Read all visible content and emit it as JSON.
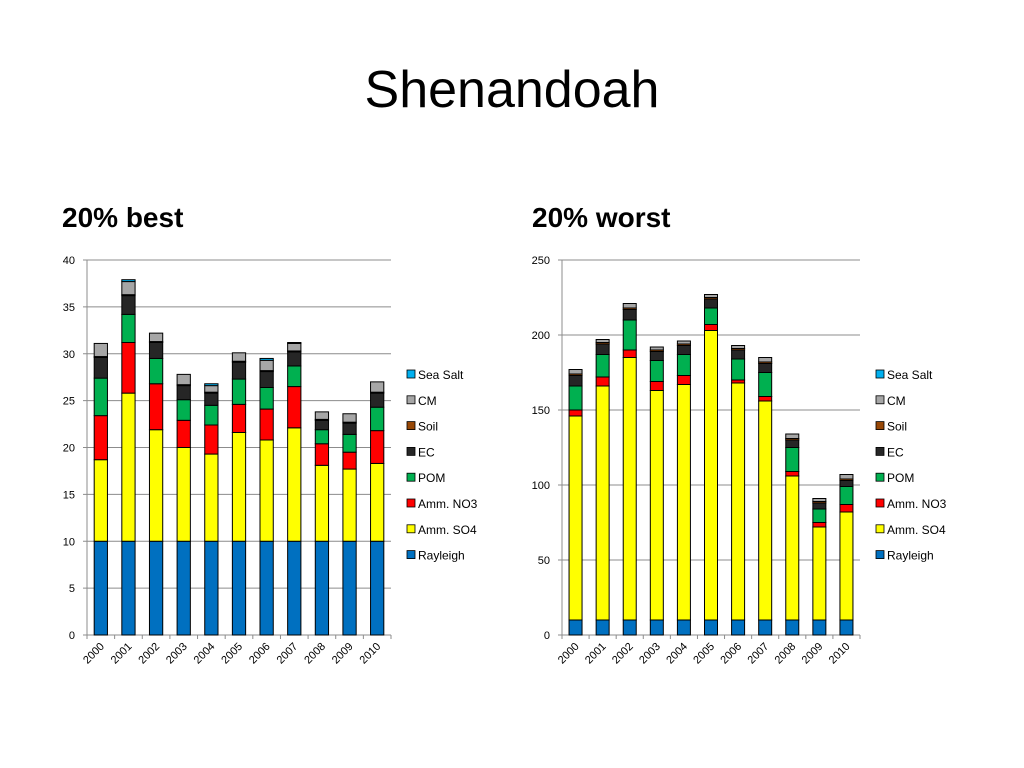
{
  "slide": {
    "title": "Shenandoah"
  },
  "chart_data": [
    {
      "type": "bar",
      "stacked": true,
      "title": "20% best",
      "xlabel": "",
      "ylabel": "",
      "ylim": [
        0,
        40
      ],
      "yticks": [
        0,
        5,
        10,
        15,
        20,
        25,
        30,
        35,
        40
      ],
      "grid": true,
      "legend": "right",
      "categories": [
        "2000",
        "2001",
        "2002",
        "2003",
        "2004",
        "2005",
        "2006",
        "2007",
        "2008",
        "2009",
        "2010"
      ],
      "series": [
        {
          "name": "Rayleigh",
          "color": "#0070C0",
          "values": [
            10,
            10,
            10,
            10,
            10,
            10,
            10,
            10,
            10,
            10,
            10
          ]
        },
        {
          "name": "Amm. SO4",
          "color": "#FFFF00",
          "values": [
            8.7,
            15.8,
            11.9,
            10.0,
            9.3,
            11.6,
            10.8,
            12.1,
            8.1,
            7.7,
            8.3
          ]
        },
        {
          "name": "Amm. NO3",
          "color": "#FF0000",
          "values": [
            4.7,
            5.4,
            4.9,
            2.9,
            3.1,
            3.0,
            3.3,
            4.4,
            2.3,
            1.8,
            3.5
          ]
        },
        {
          "name": "POM",
          "color": "#00B050",
          "values": [
            4.0,
            3.0,
            2.7,
            2.2,
            2.1,
            2.7,
            2.3,
            2.2,
            1.5,
            1.9,
            2.5
          ]
        },
        {
          "name": "EC",
          "color": "#262626",
          "values": [
            2.2,
            2.0,
            1.7,
            1.5,
            1.3,
            1.8,
            1.7,
            1.5,
            1.0,
            1.2,
            1.5
          ]
        },
        {
          "name": "Soil",
          "color": "#974706",
          "values": [
            0.1,
            0.1,
            0.1,
            0.1,
            0.1,
            0.1,
            0.1,
            0.1,
            0.1,
            0.1,
            0.1
          ]
        },
        {
          "name": "CM",
          "color": "#A6A6A6",
          "values": [
            1.4,
            1.4,
            0.9,
            1.1,
            0.7,
            0.9,
            1.1,
            0.8,
            0.8,
            0.9,
            1.1
          ]
        },
        {
          "name": "Sea Salt",
          "color": "#00B0F0",
          "values": [
            0.0,
            0.2,
            0.0,
            0.0,
            0.2,
            0.0,
            0.2,
            0.1,
            0.0,
            0.0,
            0.0
          ]
        }
      ]
    },
    {
      "type": "bar",
      "stacked": true,
      "title": "20% worst",
      "xlabel": "",
      "ylabel": "",
      "ylim": [
        0,
        250
      ],
      "yticks": [
        0,
        50,
        100,
        150,
        200,
        250
      ],
      "grid": true,
      "legend": "right",
      "categories": [
        "2000",
        "2001",
        "2002",
        "2003",
        "2004",
        "2005",
        "2006",
        "2007",
        "2008",
        "2009",
        "2010"
      ],
      "series": [
        {
          "name": "Rayleigh",
          "color": "#0070C0",
          "values": [
            10,
            10,
            10,
            10,
            10,
            10,
            10,
            10,
            10,
            10,
            10
          ]
        },
        {
          "name": "Amm. SO4",
          "color": "#FFFF00",
          "values": [
            136,
            156,
            175,
            153,
            157,
            193,
            158,
            146,
            96,
            62,
            72
          ]
        },
        {
          "name": "Amm. NO3",
          "color": "#FF0000",
          "values": [
            4,
            6,
            5,
            6,
            6,
            4,
            2,
            3,
            3,
            3,
            5
          ]
        },
        {
          "name": "POM",
          "color": "#00B050",
          "values": [
            16,
            15,
            20,
            14,
            14,
            11,
            14,
            16,
            16,
            9,
            12
          ]
        },
        {
          "name": "EC",
          "color": "#262626",
          "values": [
            7,
            7,
            7,
            6,
            6,
            6,
            6,
            6,
            5,
            4,
            4
          ]
        },
        {
          "name": "Soil",
          "color": "#974706",
          "values": [
            1,
            1,
            1,
            1,
            1,
            1,
            1,
            1,
            1,
            1,
            1
          ]
        },
        {
          "name": "CM",
          "color": "#A6A6A6",
          "values": [
            3,
            2,
            3,
            2,
            2,
            2,
            2,
            3,
            3,
            2,
            3
          ]
        },
        {
          "name": "Sea Salt",
          "color": "#00B0F0",
          "values": [
            0,
            0,
            0,
            0,
            0,
            0,
            0,
            0,
            0,
            0,
            0
          ]
        }
      ]
    }
  ]
}
